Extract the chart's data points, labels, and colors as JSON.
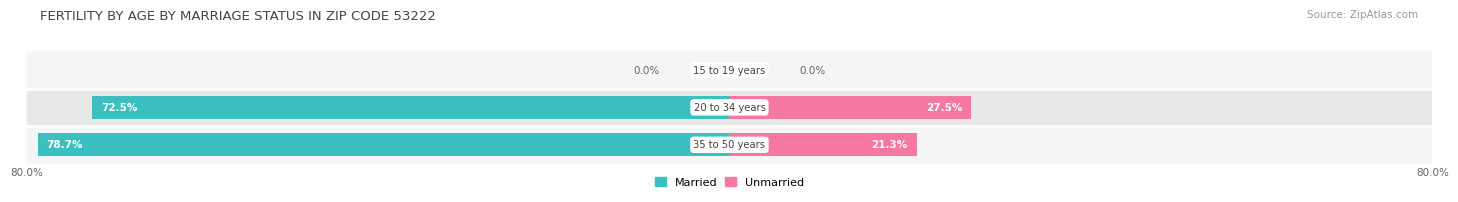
{
  "title": "FERTILITY BY AGE BY MARRIAGE STATUS IN ZIP CODE 53222",
  "source": "Source: ZipAtlas.com",
  "categories": [
    "15 to 19 years",
    "20 to 34 years",
    "35 to 50 years"
  ],
  "married_pct": [
    0.0,
    72.5,
    78.7
  ],
  "unmarried_pct": [
    0.0,
    27.5,
    21.3
  ],
  "married_color": "#3bbfbf",
  "unmarried_color": "#f478a0",
  "row_bg_light": "#f5f5f5",
  "row_bg_dark": "#e8e8e8",
  "title_fontsize": 9.5,
  "source_fontsize": 7.5,
  "axis_label_left": "80.0%",
  "axis_label_right": "80.0%",
  "legend_married": "Married",
  "legend_unmarried": "Unmarried",
  "max_val": 80.0,
  "bar_height": 0.62
}
